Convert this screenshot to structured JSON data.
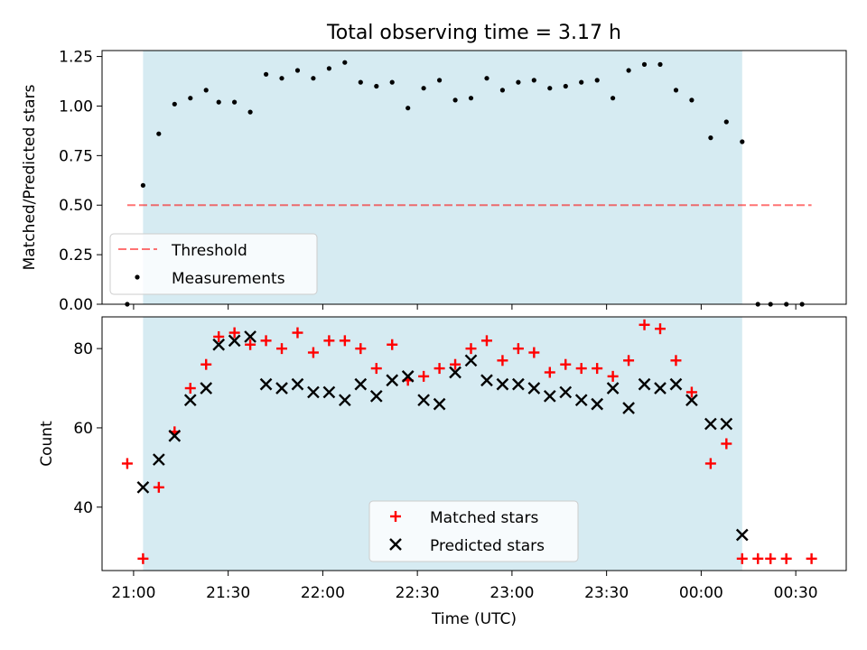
{
  "title": "Total observing time = 3.17 h",
  "colors": {
    "shade": "#add8e6",
    "threshold": "#ff0000",
    "measurement": "#000000",
    "matched": "#ff0000",
    "predicted": "#000000"
  },
  "chart_data": [
    {
      "type": "scatter",
      "ylabel": "Matched/Predicted stars",
      "xlabel": "",
      "ylim": [
        0,
        1.28
      ],
      "yticks": [
        0.0,
        0.25,
        0.5,
        0.75,
        1.0,
        1.25
      ],
      "ytick_labels": [
        "0.00",
        "0.25",
        "0.50",
        "0.75",
        "1.00",
        "1.25"
      ],
      "shaded_span": [
        "21:03",
        "00:13"
      ],
      "threshold": {
        "label": "Threshold",
        "value": 0.5,
        "from": "20:58",
        "to": "00:35"
      },
      "legend": {
        "placement": "lower-left",
        "entries": [
          "Threshold",
          "Measurements"
        ]
      },
      "series": [
        {
          "name": "Measurements",
          "x": [
            "20:58",
            "21:03",
            "21:08",
            "21:13",
            "21:18",
            "21:23",
            "21:27",
            "21:32",
            "21:37",
            "21:42",
            "21:47",
            "21:52",
            "21:57",
            "22:02",
            "22:07",
            "22:12",
            "22:17",
            "22:22",
            "22:27",
            "22:32",
            "22:37",
            "22:42",
            "22:47",
            "22:52",
            "22:57",
            "23:02",
            "23:07",
            "23:12",
            "23:17",
            "23:22",
            "23:27",
            "23:32",
            "23:37",
            "23:42",
            "23:47",
            "23:52",
            "23:57",
            "00:03",
            "00:08",
            "00:13",
            "00:18",
            "00:22",
            "00:27",
            "00:32"
          ],
          "y": [
            0.0,
            0.6,
            0.86,
            1.01,
            1.04,
            1.08,
            1.02,
            1.02,
            0.97,
            1.16,
            1.14,
            1.18,
            1.14,
            1.19,
            1.22,
            1.12,
            1.1,
            1.12,
            0.99,
            1.09,
            1.13,
            1.03,
            1.04,
            1.14,
            1.08,
            1.12,
            1.13,
            1.09,
            1.1,
            1.12,
            1.13,
            1.04,
            1.18,
            1.21,
            1.21,
            1.08,
            1.03,
            0.84,
            0.92,
            0.82,
            0.0,
            0.0,
            0.0,
            0.0
          ]
        }
      ]
    },
    {
      "type": "scatter",
      "ylabel": "Count",
      "xlabel": "Time (UTC)",
      "ylim": [
        24,
        88
      ],
      "yticks": [
        40,
        60,
        80
      ],
      "xticks": [
        "21:00",
        "21:30",
        "22:00",
        "22:30",
        "23:00",
        "23:30",
        "00:00",
        "00:30"
      ],
      "shaded_span": [
        "21:03",
        "00:13"
      ],
      "legend": {
        "placement": "lower-center",
        "entries": [
          "Matched stars",
          "Predicted stars"
        ]
      },
      "series": [
        {
          "name": "Matched stars",
          "x": [
            "20:58",
            "21:03",
            "21:08",
            "21:13",
            "21:18",
            "21:23",
            "21:27",
            "21:32",
            "21:37",
            "21:42",
            "21:47",
            "21:52",
            "21:57",
            "22:02",
            "22:07",
            "22:12",
            "22:17",
            "22:22",
            "22:27",
            "22:32",
            "22:37",
            "22:42",
            "22:47",
            "22:52",
            "22:57",
            "23:02",
            "23:07",
            "23:12",
            "23:17",
            "23:22",
            "23:27",
            "23:32",
            "23:37",
            "23:42",
            "23:47",
            "23:52",
            "23:57",
            "00:03",
            "00:08",
            "00:13",
            "00:18",
            "00:22",
            "00:27",
            "00:35"
          ],
          "y": [
            51,
            27,
            45,
            59,
            70,
            76,
            83,
            84,
            81,
            82,
            80,
            84,
            79,
            82,
            82,
            80,
            75,
            81,
            72,
            73,
            75,
            76,
            80,
            82,
            77,
            80,
            79,
            74,
            76,
            75,
            75,
            73,
            77,
            86,
            85,
            77,
            69,
            51,
            56,
            27,
            27,
            27,
            27,
            27
          ]
        },
        {
          "name": "Predicted stars",
          "x": [
            "21:03",
            "21:08",
            "21:13",
            "21:18",
            "21:23",
            "21:27",
            "21:32",
            "21:37",
            "21:42",
            "21:47",
            "21:52",
            "21:57",
            "22:02",
            "22:07",
            "22:12",
            "22:17",
            "22:22",
            "22:27",
            "22:32",
            "22:37",
            "22:42",
            "22:47",
            "22:52",
            "22:57",
            "23:02",
            "23:07",
            "23:12",
            "23:17",
            "23:22",
            "23:27",
            "23:32",
            "23:37",
            "23:42",
            "23:47",
            "23:52",
            "23:57",
            "00:03",
            "00:08",
            "00:13"
          ],
          "y": [
            45,
            52,
            58,
            67,
            70,
            81,
            82,
            83,
            71,
            70,
            71,
            69,
            69,
            67,
            71,
            68,
            72,
            73,
            67,
            66,
            74,
            77,
            72,
            71,
            71,
            70,
            68,
            69,
            67,
            66,
            70,
            65,
            71,
            70,
            71,
            67,
            61,
            61,
            33
          ]
        }
      ]
    }
  ]
}
